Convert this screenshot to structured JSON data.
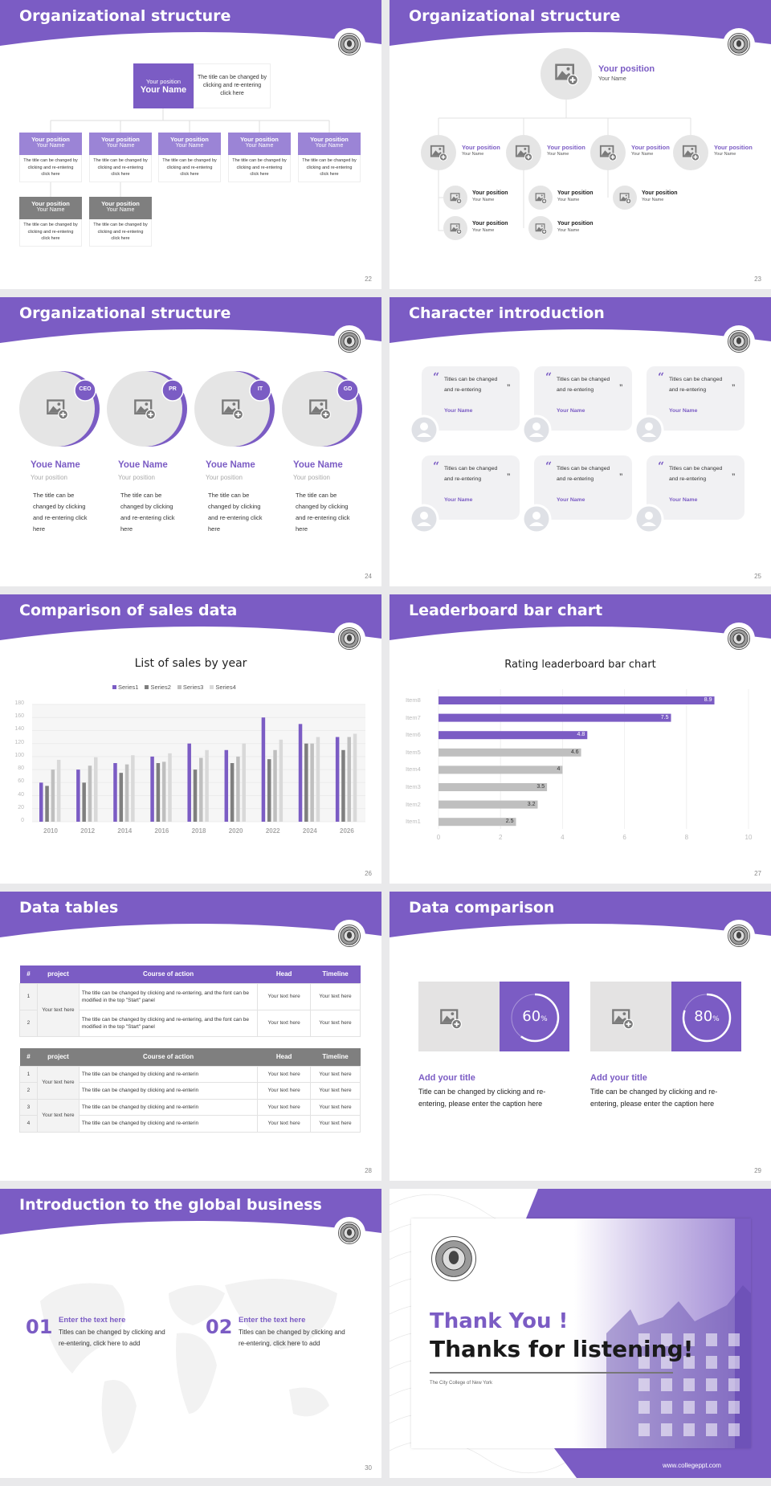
{
  "theme": {
    "accent": "#7b5cc4",
    "accent_light": "#9b84d6",
    "gray_dark": "#7f7f7f",
    "gray_mid": "#a6a6a6",
    "gray_light": "#d4d4d4"
  },
  "slides": [
    {
      "page": "22",
      "title": "Organizational structure",
      "top": {
        "position": "Your position",
        "name": "Your Name",
        "desc": "The title can be changed by clicking and re-entering click here"
      },
      "nodes": [
        {
          "position": "Your position",
          "name": "Your Name",
          "desc": "The title can be changed by clicking and re-entering click here"
        },
        {
          "position": "Your position",
          "name": "Your Name",
          "desc": "The title can be changed by clicking and re-entering click here"
        },
        {
          "position": "Your position",
          "name": "Your Name",
          "desc": "The title can be changed by clicking and re-entering click here"
        },
        {
          "position": "Your position",
          "name": "Your Name",
          "desc": "The title can be changed by clicking and re-entering click here"
        },
        {
          "position": "Your position",
          "name": "Your Name",
          "desc": "The title can be changed by clicking and re-entering click here"
        }
      ],
      "sub_nodes": [
        {
          "position": "Your position",
          "name": "Your Name",
          "desc": "The title can be changed by clicking and re-entering click here"
        },
        {
          "position": "Your position",
          "name": "Your Name",
          "desc": "The title can be changed by clicking and re-entering click here"
        }
      ]
    },
    {
      "page": "23",
      "title": "Organizational structure",
      "top": {
        "position": "Your position",
        "name": "Your Name"
      },
      "branches": [
        {
          "position": "Your position",
          "name": "Your Name",
          "children": [
            {
              "position": "Your position",
              "name": "Your Name"
            },
            {
              "position": "Your position",
              "name": "Your Name"
            }
          ]
        },
        {
          "position": "Your position",
          "name": "Your Name",
          "children": [
            {
              "position": "Your position",
              "name": "Your Name"
            },
            {
              "position": "Your position",
              "name": "Your Name"
            }
          ]
        },
        {
          "position": "Your position",
          "name": "Your Name",
          "children": [
            {
              "position": "Your position",
              "name": "Your Name"
            }
          ]
        },
        {
          "position": "Your position",
          "name": "Your Name",
          "children": []
        }
      ]
    },
    {
      "page": "24",
      "title": "Organizational structure",
      "people": [
        {
          "badge": "CEO",
          "name": "Youe Name",
          "position": "Your position",
          "desc": "The title can be changed by clicking and re-entering click here"
        },
        {
          "badge": "PR",
          "name": "Youe Name",
          "position": "Your position",
          "desc": "The title can be changed by clicking and re-entering click here"
        },
        {
          "badge": "IT",
          "name": "Youe Name",
          "position": "Your position",
          "desc": "The title can be changed by clicking and re-entering click here"
        },
        {
          "badge": "GD",
          "name": "Youe Name",
          "position": "Your position",
          "desc": "The title can be changed by clicking and re-entering click here"
        }
      ]
    },
    {
      "page": "25",
      "title": "Character introduction",
      "cards": [
        {
          "quote": "Titles can be changed and re-entering",
          "name": "Your Name"
        },
        {
          "quote": "Titles can be changed and re-entering",
          "name": "Your Name"
        },
        {
          "quote": "Titles can be changed and re-entering",
          "name": "Your Name"
        },
        {
          "quote": "Titles can be changed and re-entering",
          "name": "Your Name"
        },
        {
          "quote": "Titles can be changed and re-entering",
          "name": "Your Name"
        },
        {
          "quote": "Titles can be changed and re-entering",
          "name": "Your Name"
        }
      ]
    },
    {
      "page": "26",
      "title": "Comparison of sales data"
    },
    {
      "page": "27",
      "title": "Leaderboard bar chart"
    },
    {
      "page": "28",
      "title": "Data tables",
      "tables": [
        {
          "headers": [
            "#",
            "project",
            "Course of action",
            "Head",
            "Timeline"
          ],
          "header_color": "#7b5cc4",
          "groups": [
            {
              "project": "Your text here",
              "rows": [
                {
                  "num": "1",
                  "course": "The title can be changed by clicking and re-entering, and the font can be modified in the top \"Start\" panel",
                  "head": "Your text here",
                  "timeline": "Your text here"
                },
                {
                  "num": "2",
                  "course": "The title can be changed by clicking and re-entering, and the font can be modified in the top \"Start\" panel",
                  "head": "Your text here",
                  "timeline": "Your text here"
                }
              ]
            }
          ]
        },
        {
          "headers": [
            "#",
            "project",
            "Course of action",
            "Head",
            "Timeline"
          ],
          "header_color": "#7f7f7f",
          "groups": [
            {
              "project": "Your text here",
              "rows": [
                {
                  "num": "1",
                  "course": "The title can be changed by clicking and re-enterin",
                  "head": "Your text here",
                  "timeline": "Your text here"
                },
                {
                  "num": "2",
                  "course": "The title can be changed by clicking and re-enterin",
                  "head": "Your text here",
                  "timeline": "Your text here"
                }
              ]
            },
            {
              "project": "Your text here",
              "rows": [
                {
                  "num": "3",
                  "course": "The title can be changed by clicking and re-enterin",
                  "head": "Your text here",
                  "timeline": "Your text here"
                },
                {
                  "num": "4",
                  "course": "The title can be changed by clicking and re-enterin",
                  "head": "Your text here",
                  "timeline": "Your text here"
                }
              ]
            }
          ]
        }
      ]
    },
    {
      "page": "29",
      "title": "Data comparison",
      "items": [
        {
          "percent": 60,
          "value": "60",
          "unit": "%",
          "title": "Add your title",
          "desc": "Title can be changed by clicking and re-entering, please enter the caption here"
        },
        {
          "percent": 80,
          "value": "80",
          "unit": "%",
          "title": "Add your title",
          "desc": "Title can be changed by clicking and re-entering, please enter the caption here"
        }
      ]
    },
    {
      "page": "30",
      "title": "Introduction to the global business",
      "items": [
        {
          "num": "01",
          "title": "Enter the text here",
          "desc": "Titles can be changed by clicking and re-entering, click here to add"
        },
        {
          "num": "02",
          "title": "Enter the text here",
          "desc": "Titles can be changed by clicking and re-entering, click here to add"
        }
      ]
    },
    {
      "thanks": "Thank You !",
      "subtitle": "Thanks for listening!",
      "college": "The City College of New York",
      "url": "www.collegeppt.com"
    }
  ],
  "chart_data": [
    {
      "type": "bar",
      "title": "List of sales by year",
      "categories": [
        "2010",
        "2012",
        "2014",
        "2016",
        "2018",
        "2020",
        "2022",
        "2024",
        "2026"
      ],
      "series": [
        {
          "name": "Series1",
          "color": "#7b5cc4",
          "values": [
            60,
            80,
            90,
            100,
            120,
            110,
            160,
            150,
            130
          ]
        },
        {
          "name": "Series2",
          "color": "#7f7f7f",
          "values": [
            55,
            60,
            75,
            90,
            80,
            90,
            96,
            120,
            110
          ]
        },
        {
          "name": "Series3",
          "color": "#bfbfbf",
          "values": [
            80,
            86,
            88,
            92,
            98,
            100,
            110,
            120,
            130
          ]
        },
        {
          "name": "Series4",
          "color": "#d9d9d9",
          "values": [
            95,
            99,
            102,
            105,
            110,
            120,
            126,
            130,
            135
          ]
        }
      ],
      "ylim": [
        0,
        180
      ],
      "yticks": [
        "0",
        "20",
        "40",
        "60",
        "80",
        "100",
        "120",
        "140",
        "160",
        "180"
      ],
      "legend": "top",
      "grid": true
    },
    {
      "type": "bar",
      "orientation": "horizontal",
      "title": "Rating leaderboard bar chart",
      "categories": [
        "Item8",
        "Item7",
        "Item6",
        "Item5",
        "Item4",
        "Item3",
        "Item2",
        "Item1"
      ],
      "values": [
        8.9,
        7.5,
        4.8,
        4.6,
        4,
        3.5,
        3.2,
        2.5
      ],
      "labels": [
        "8.9",
        "7.5",
        "4.8",
        "4.6",
        "4",
        "3.5",
        "3.2",
        "2.5"
      ],
      "colors": [
        "#7b5cc4",
        "#7b5cc4",
        "#7b5cc4",
        "#bfbfbf",
        "#bfbfbf",
        "#bfbfbf",
        "#bfbfbf",
        "#bfbfbf"
      ],
      "xlim": [
        0,
        10
      ],
      "xticks": [
        "0",
        "2",
        "4",
        "6",
        "8",
        "10"
      ],
      "grid": true
    }
  ]
}
